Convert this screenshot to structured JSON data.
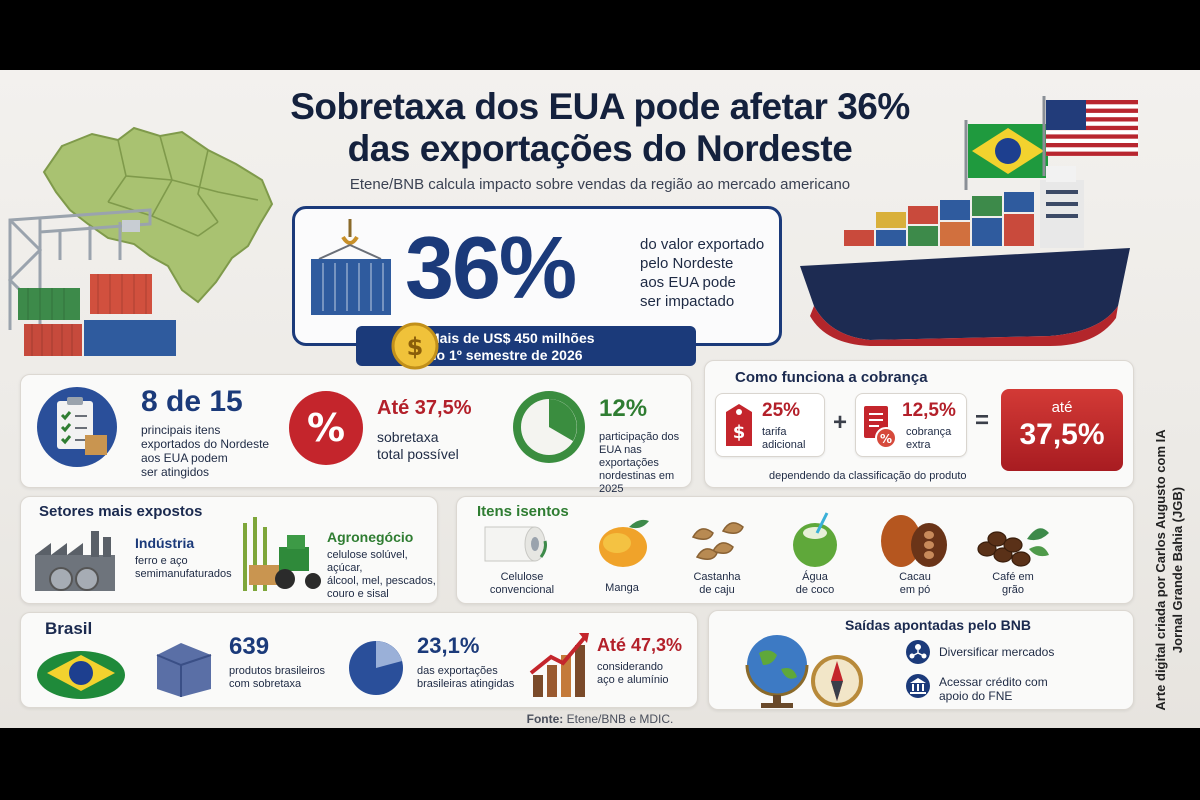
{
  "header": {
    "title_line1": "Sobretaxa dos EUA pode afetar 36%",
    "title_line2": "das exportações do Nordeste",
    "subtitle": "Etene/BNB calcula impacto sobre vendas da região ao mercado americano"
  },
  "hero": {
    "percent": "36%",
    "desc_lines": [
      "do valor exportado",
      "pelo Nordeste",
      "aos EUA pode",
      "ser impactado"
    ],
    "ribbon_line1": "Mais de US$ 450 milhões",
    "ribbon_line2": "no 1º semestre de 2026"
  },
  "itens_stats": {
    "stat1": {
      "value": "8 de 15",
      "lines": [
        "principais itens",
        "exportados do Nordeste",
        "aos EUA podem",
        "ser atingidos"
      ]
    },
    "stat2": {
      "value": "Até 37,5%",
      "lines": [
        "sobretaxa",
        "total possível"
      ]
    },
    "stat3": {
      "value": "12%",
      "lines": [
        "participação dos",
        "EUA nas exportações",
        "nordestinas em 2025"
      ]
    }
  },
  "cobranca": {
    "title": "Como funciona a cobrança",
    "item1": {
      "pct": "25%",
      "lines": [
        "tarifa",
        "adicional"
      ]
    },
    "plus": "+",
    "item2": {
      "pct": "12,5%",
      "lines": [
        "cobrança",
        "extra"
      ]
    },
    "equals": "=",
    "total_label": "até",
    "total_value": "37,5%",
    "note": "dependendo da classificação do produto"
  },
  "setores": {
    "title": "Setores mais expostos",
    "industria": {
      "name": "Indústria",
      "lines": [
        "ferro e aço",
        "semimanufaturados"
      ]
    },
    "agro": {
      "name": "Agronegócio",
      "lines": [
        "celulose solúvel, açúcar,",
        "álcool, mel, pescados,",
        "couro e sisal"
      ]
    }
  },
  "isentos": {
    "title": "Itens isentos",
    "items": [
      {
        "lines": [
          "Celulose",
          "convencional"
        ]
      },
      {
        "lines": [
          "Manga"
        ]
      },
      {
        "lines": [
          "Castanha",
          "de caju"
        ]
      },
      {
        "lines": [
          "Água",
          "de coco"
        ]
      },
      {
        "lines": [
          "Cacau",
          "em pó"
        ]
      },
      {
        "lines": [
          "Café em",
          "grão"
        ]
      }
    ]
  },
  "brasil": {
    "title": "Brasil",
    "stat1": {
      "value": "639",
      "lines": [
        "produtos brasileiros",
        "com sobretaxa"
      ]
    },
    "stat2": {
      "value": "23,1%",
      "lines": [
        "das exportações",
        "brasileiras atingidas"
      ]
    },
    "stat3": {
      "value": "Até 47,3%",
      "lines": [
        "considerando",
        "aço e alumínio"
      ]
    }
  },
  "saidas": {
    "title": "Saídas apontadas pelo BNB",
    "item1": "Diversificar mercados",
    "item2_lines": [
      "Acessar crédito com",
      "apoio do FNE"
    ]
  },
  "source": {
    "label": "Fonte:",
    "text": "Etene/BNB e MDIC."
  },
  "credit": {
    "line1": "Arte digital criada por Carlos Augusto com IA",
    "line2": "Jornal Grande Bahia (JGB)"
  },
  "colors": {
    "navy": "#1b3a7a",
    "red": "#b3202a",
    "green": "#2f7d32",
    "background": "#f1efec"
  }
}
